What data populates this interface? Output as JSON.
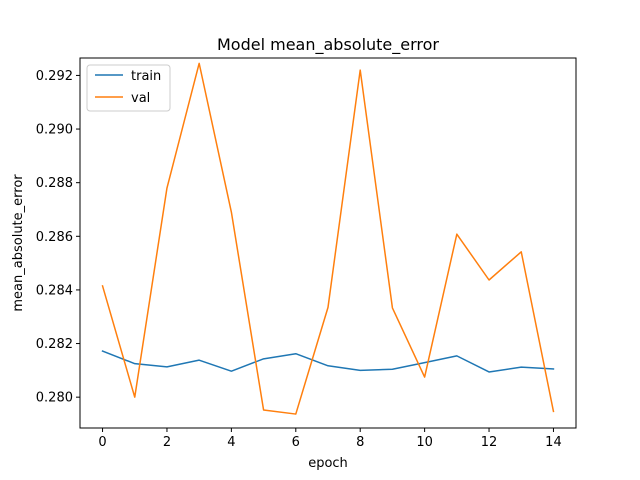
{
  "chart_data": {
    "type": "line",
    "title": "Model mean_absolute_error",
    "xlabel": "epoch",
    "ylabel": "mean_absolute_error",
    "x": [
      0,
      1,
      2,
      3,
      4,
      5,
      6,
      7,
      8,
      9,
      10,
      11,
      12,
      13,
      14
    ],
    "xlim": [
      -0.7,
      14.7
    ],
    "ylim": [
      0.27885,
      0.29265
    ],
    "xticks": [
      0,
      2,
      4,
      6,
      8,
      10,
      12,
      14
    ],
    "xtick_labels": [
      "0",
      "2",
      "4",
      "6",
      "8",
      "10",
      "12",
      "14"
    ],
    "yticks": [
      0.28,
      0.282,
      0.284,
      0.286,
      0.288,
      0.29,
      0.292
    ],
    "ytick_labels": [
      "0.280",
      "0.282",
      "0.284",
      "0.286",
      "0.288",
      "0.290",
      "0.292"
    ],
    "grid": false,
    "legend_position": "top-left",
    "series": [
      {
        "name": "train",
        "color": "#1f77b4",
        "values": [
          0.28172,
          0.28125,
          0.28113,
          0.28138,
          0.28097,
          0.28143,
          0.28162,
          0.28117,
          0.281,
          0.28104,
          0.28129,
          0.28154,
          0.28094,
          0.28112,
          0.28105
        ]
      },
      {
        "name": "val",
        "color": "#ff7f0e",
        "values": [
          0.28415,
          0.28,
          0.2878,
          0.29245,
          0.2869,
          0.27952,
          0.27937,
          0.28335,
          0.2922,
          0.28333,
          0.28075,
          0.28608,
          0.28437,
          0.28542,
          0.27947
        ]
      }
    ]
  }
}
